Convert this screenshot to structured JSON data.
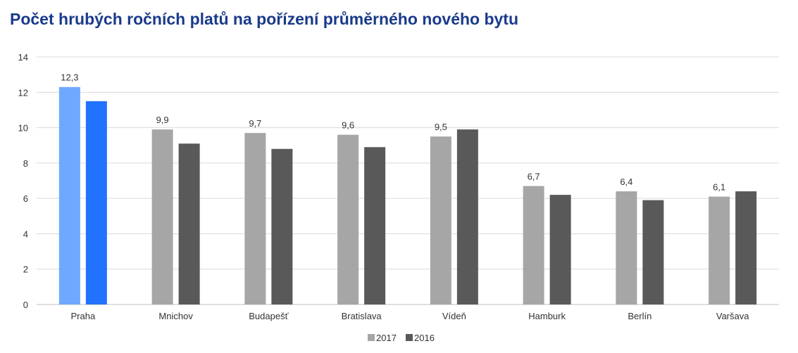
{
  "chart_data": {
    "type": "bar",
    "title": "Počet hrubých ročních platů na pořízení průměrného nového bytu",
    "categories": [
      "Praha",
      "Mnichov",
      "Budapešť",
      "Bratislava",
      "Vídeň",
      "Hamburk",
      "Berlín",
      "Varšava"
    ],
    "series": [
      {
        "name": "2017",
        "values": [
          12.3,
          9.9,
          9.7,
          9.6,
          9.5,
          6.7,
          6.4,
          6.1
        ],
        "color": "#a6a6a6"
      },
      {
        "name": "2016",
        "values": [
          11.5,
          9.1,
          8.8,
          8.9,
          9.9,
          6.2,
          5.9,
          6.4
        ],
        "color": "#595959"
      }
    ],
    "highlight": {
      "category": "Praha",
      "colors": [
        "#6fa8ff",
        "#2272ff"
      ]
    },
    "data_labels": [
      "12,3",
      "9,9",
      "9,7",
      "9,6",
      "9,5",
      "6,7",
      "6,4",
      "6,1"
    ],
    "yticks": [
      "0",
      "2",
      "4",
      "6",
      "8",
      "10",
      "12",
      "14"
    ],
    "ylim": [
      0,
      14
    ],
    "grid": true,
    "legend_position": "bottom-center",
    "xlabel": "",
    "ylabel": ""
  }
}
